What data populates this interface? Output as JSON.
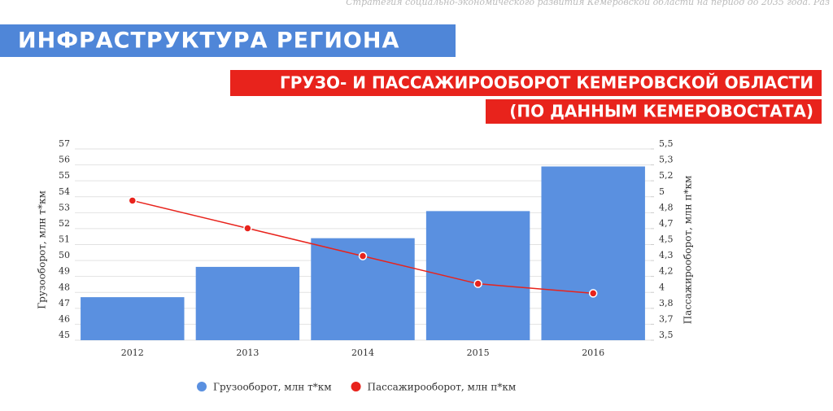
{
  "header": {
    "note": "Стратегия социально-экономического развития Кемеровской области на период до 2035 года. Раз",
    "section": "ИНФРАСТРУКТУРА РЕГИОНА",
    "title_line1": "ГРУЗО- И ПАССАЖИРООБОРОТ КЕМЕРОВСКОЙ ОБЛАСТИ",
    "title_line2": "(ПО ДАННЫМ КЕМЕРОВОСТАТА)"
  },
  "chart_data": {
    "type": "bar_line",
    "y_label": "Грузооборот, млн т*км",
    "y2_label": "Пассажирооборот, млн п*км",
    "categories": [
      "2012",
      "2013",
      "2014",
      "2015",
      "2016"
    ],
    "series": [
      {
        "name": "Грузооборот, млн т*км",
        "type": "bar",
        "color": "#5a90e0",
        "values": [
          47.7,
          49.6,
          51.4,
          53.1,
          55.9
        ]
      },
      {
        "name": "Пассажирооборот, млн п*км",
        "type": "line",
        "axis": "y2",
        "color": "#e8231c",
        "values": [
          4.96,
          4.67,
          4.38,
          4.09,
          3.99
        ]
      }
    ],
    "ylim": [
      45,
      57
    ],
    "yticks": [
      45,
      46,
      47,
      48,
      49,
      50,
      51,
      52,
      53,
      54,
      55,
      56,
      57
    ],
    "y2lim": [
      3.5,
      5.5
    ],
    "y2ticks": [
      {
        "value": 3.5,
        "label": "3,5"
      },
      {
        "value": 3.667,
        "label": "3,7"
      },
      {
        "value": 3.833,
        "label": "3,8"
      },
      {
        "value": 4,
        "label": "4"
      },
      {
        "value": 4.167,
        "label": "4,2"
      },
      {
        "value": 4.333,
        "label": "4,3"
      },
      {
        "value": 4.5,
        "label": "4,5"
      },
      {
        "value": 4.667,
        "label": "4,7"
      },
      {
        "value": 4.833,
        "label": "4,8"
      },
      {
        "value": 5,
        "label": "5"
      },
      {
        "value": 5.167,
        "label": "5,2"
      },
      {
        "value": 5.333,
        "label": "5,3"
      },
      {
        "value": 5.5,
        "label": "5,5"
      }
    ],
    "grid": true
  }
}
